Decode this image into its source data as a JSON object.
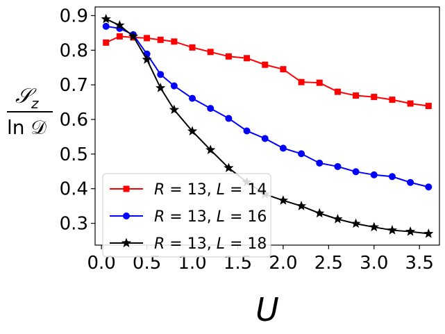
{
  "chart_data": {
    "type": "line",
    "xlabel": "U",
    "ylabel": {
      "numerator": "𝒮",
      "numerator_sub": "z",
      "denominator": "ln 𝒟"
    },
    "xlim": [
      -0.07,
      3.72
    ],
    "ylim": [
      0.237,
      0.925
    ],
    "xticks": [
      0.0,
      0.5,
      1.0,
      1.5,
      2.0,
      2.5,
      3.0,
      3.5
    ],
    "xtick_labels": [
      "0.0",
      "0.5",
      "1.0",
      "1.5",
      "2.0",
      "2.5",
      "3.0",
      "3.5"
    ],
    "yticks": [
      0.3,
      0.4,
      0.5,
      0.6,
      0.7,
      0.8,
      0.9
    ],
    "ytick_labels": [
      "0.3",
      "0.4",
      "0.5",
      "0.6",
      "0.7",
      "0.8",
      "0.9"
    ],
    "grid": false,
    "legend_position": "lower-left",
    "x": [
      0.05,
      0.2,
      0.35,
      0.5,
      0.65,
      0.8,
      1.0,
      1.2,
      1.4,
      1.6,
      1.8,
      2.0,
      2.2,
      2.4,
      2.6,
      2.8,
      3.0,
      3.2,
      3.4,
      3.6
    ],
    "series": [
      {
        "name": "R = 13, L = 14",
        "legend": {
          "r": "13",
          "l": "14"
        },
        "color": "#ff0000",
        "marker": "square",
        "values": [
          0.822,
          0.84,
          0.837,
          0.835,
          0.83,
          0.825,
          0.808,
          0.795,
          0.782,
          0.777,
          0.758,
          0.745,
          0.708,
          0.706,
          0.68,
          0.669,
          0.665,
          0.657,
          0.646,
          0.639
        ]
      },
      {
        "name": "R = 13, L = 16",
        "legend": {
          "r": "13",
          "l": "16"
        },
        "color": "#0000ff",
        "marker": "circle",
        "values": [
          0.869,
          0.863,
          0.845,
          0.789,
          0.73,
          0.697,
          0.661,
          0.632,
          0.603,
          0.567,
          0.545,
          0.517,
          0.501,
          0.474,
          0.464,
          0.449,
          0.44,
          0.435,
          0.418,
          0.405
        ]
      },
      {
        "name": "R = 13, L = 18",
        "legend": {
          "r": "13",
          "l": "18"
        },
        "color": "#000000",
        "marker": "star",
        "values": [
          0.89,
          0.872,
          0.84,
          0.773,
          0.691,
          0.628,
          0.566,
          0.512,
          0.46,
          0.419,
          0.384,
          0.366,
          0.35,
          0.329,
          0.312,
          0.299,
          0.289,
          0.28,
          0.276,
          0.27
        ]
      }
    ]
  }
}
